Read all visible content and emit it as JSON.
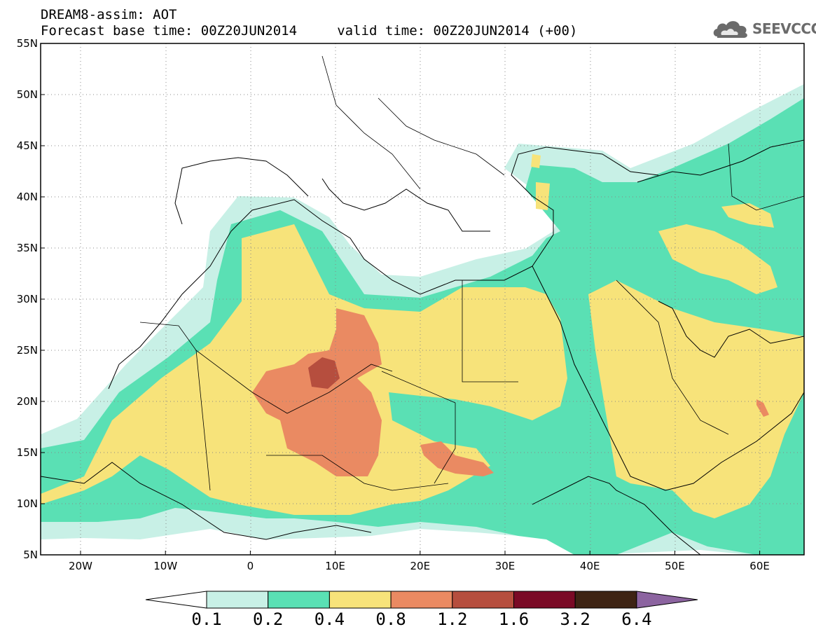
{
  "header": {
    "line1": "DREAM8-assim: AOT",
    "line2": "Forecast base time: 00Z20JUN2014     valid time: 00Z20JUN2014 (+00)"
  },
  "logo": {
    "text": "SEEVCCC",
    "icon": "cloud-icon"
  },
  "map": {
    "projection": "lat-lon",
    "lon_range": [
      -25,
      65
    ],
    "lat_range": [
      5,
      55
    ],
    "lat_ticks": [
      "5N",
      "10N",
      "15N",
      "20N",
      "25N",
      "30N",
      "35N",
      "40N",
      "45N",
      "50N",
      "55N"
    ],
    "lon_ticks": [
      "20W",
      "10W",
      "0",
      "10E",
      "20E",
      "30E",
      "40E",
      "50E",
      "60E"
    ],
    "grid": "dotted"
  },
  "colorbar": {
    "colors": [
      "#ffffff",
      "#c8f0e6",
      "#5ae0b4",
      "#f7e37a",
      "#ea8a62",
      "#b64e3e",
      "#7a0a26",
      "#3e2414",
      "#8c64a0"
    ],
    "labels": [
      "0.1",
      "0.2",
      "0.4",
      "0.8",
      "1.2",
      "1.6",
      "3.2",
      "6.4"
    ]
  }
}
